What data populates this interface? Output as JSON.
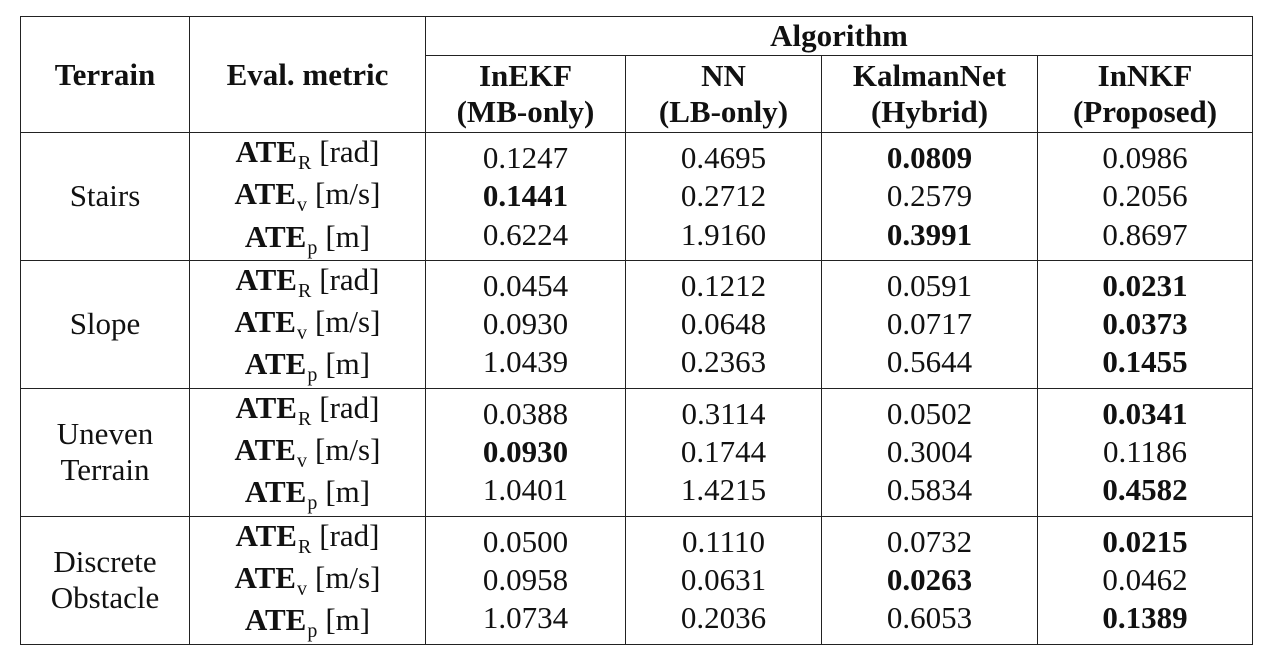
{
  "header": {
    "terrain": "Terrain",
    "metric": "Eval. metric",
    "algorithm": "Algorithm",
    "columns": [
      {
        "name": "InEKF",
        "tag": "(MB-only)"
      },
      {
        "name": "NN",
        "tag": "(LB-only)"
      },
      {
        "name": "KalmanNet",
        "tag": "(Hybrid)"
      },
      {
        "name": "InNKF",
        "tag": "(Proposed)"
      }
    ]
  },
  "metrics": [
    {
      "base": "ATE",
      "sub": "R",
      "unit": "[rad]"
    },
    {
      "base": "ATE",
      "sub": "v",
      "unit": "[m/s]"
    },
    {
      "base": "ATE",
      "sub": "p",
      "unit": "[m]"
    }
  ],
  "groups": [
    {
      "terrain": [
        "Stairs"
      ],
      "rows": [
        {
          "values": [
            "0.1247",
            "0.4695",
            "0.0809",
            "0.0986"
          ],
          "best": 2
        },
        {
          "values": [
            "0.1441",
            "0.2712",
            "0.2579",
            "0.2056"
          ],
          "best": 0
        },
        {
          "values": [
            "0.6224",
            "1.9160",
            "0.3991",
            "0.8697"
          ],
          "best": 2
        }
      ]
    },
    {
      "terrain": [
        "Slope"
      ],
      "rows": [
        {
          "values": [
            "0.0454",
            "0.1212",
            "0.0591",
            "0.0231"
          ],
          "best": 3
        },
        {
          "values": [
            "0.0930",
            "0.0648",
            "0.0717",
            "0.0373"
          ],
          "best": 3
        },
        {
          "values": [
            "1.0439",
            "0.2363",
            "0.5644",
            "0.1455"
          ],
          "best": 3
        }
      ]
    },
    {
      "terrain": [
        "Uneven",
        "Terrain"
      ],
      "rows": [
        {
          "values": [
            "0.0388",
            "0.3114",
            "0.0502",
            "0.0341"
          ],
          "best": 3
        },
        {
          "values": [
            "0.0930",
            "0.1744",
            "0.3004",
            "0.1186"
          ],
          "best": 0
        },
        {
          "values": [
            "1.0401",
            "1.4215",
            "0.5834",
            "0.4582"
          ],
          "best": 3
        }
      ]
    },
    {
      "terrain": [
        "Discrete",
        "Obstacle"
      ],
      "rows": [
        {
          "values": [
            "0.0500",
            "0.1110",
            "0.0732",
            "0.0215"
          ],
          "best": 3
        },
        {
          "values": [
            "0.0958",
            "0.0631",
            "0.0263",
            "0.0462"
          ],
          "best": 2
        },
        {
          "values": [
            "1.0734",
            "0.2036",
            "0.6053",
            "0.1389"
          ],
          "best": 3
        }
      ]
    }
  ]
}
